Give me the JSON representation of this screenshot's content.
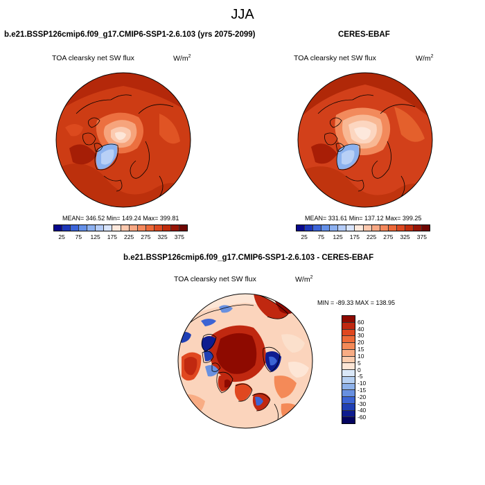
{
  "page": {
    "season": "JJA"
  },
  "panels": {
    "model": {
      "title": "b.e21.BSSP126cmip6.f09_g17.CMIP6-SSP1-2.6.103 (yrs 2075-2099)",
      "variable": "TOA clearsky net SW flux",
      "units": "W/m",
      "units_exp": "2",
      "stats": "MEAN= 346.52  Min= 149.24  Max= 399.81"
    },
    "obs": {
      "title": "CERES-EBAF",
      "variable": "TOA clearsky net SW flux",
      "units": "W/m",
      "units_exp": "2",
      "stats": "MEAN= 331.61  Min= 137.12  Max= 399.25"
    },
    "diff": {
      "title": "b.e21.BSSP126cmip6.f09_g17.CMIP6-SSP1-2.6.103 - CERES-EBAF",
      "variable": "TOA clearsky net SW flux",
      "units": "W/m",
      "units_exp": "2",
      "minmax": "MIN = -89.33 MAX = 138.95"
    }
  },
  "colorbars": {
    "absolute": {
      "labels": [
        "25",
        "75",
        "125",
        "175",
        "225",
        "275",
        "325",
        "375"
      ],
      "colors": [
        "#08088c",
        "#1c36b8",
        "#3c64d8",
        "#6490e8",
        "#8cb0f0",
        "#b4ccf8",
        "#d8e4fc",
        "#fde8dc",
        "#fcc8ae",
        "#f8a884",
        "#f4885c",
        "#ec6838",
        "#dc4820",
        "#c02c0c",
        "#961404",
        "#6e0602"
      ]
    },
    "difference": {
      "labels": [
        "60",
        "40",
        "30",
        "20",
        "15",
        "10",
        "5",
        "0",
        "-5",
        "-10",
        "-15",
        "-20",
        "-30",
        "-40",
        "-60"
      ],
      "colors": [
        "#8e0a00",
        "#c02810",
        "#e04820",
        "#ee6a38",
        "#f48a58",
        "#f8ac84",
        "#fbccae",
        "#fde6d6",
        "#dae8f8",
        "#b6d0f2",
        "#8eb2ea",
        "#6890e0",
        "#3c64d4",
        "#2040b4",
        "#0e1c90",
        "#040460"
      ]
    }
  }
}
